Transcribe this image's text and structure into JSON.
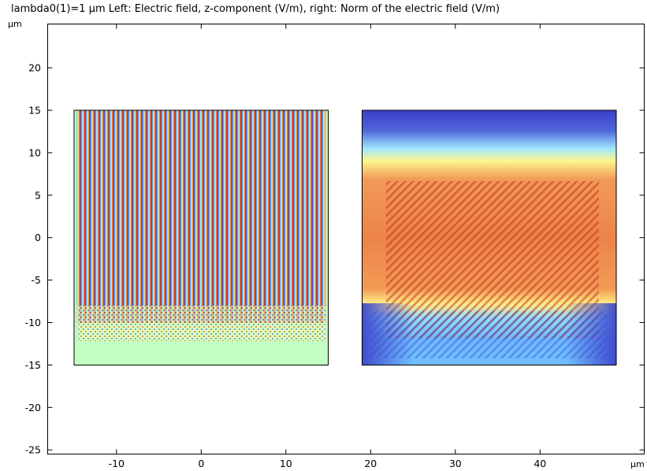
{
  "chart_data": {
    "type": "heatmap",
    "title": "lambda0(1)=1 µm   Left: Electric field, z-component (V/m), right: Norm of the electric field (V/m)",
    "xlabel": "µm",
    "ylabel": "µm",
    "xlim": [
      -18,
      50
    ],
    "ylim": [
      -25.5,
      25
    ],
    "xticks": [
      -10,
      0,
      10,
      20,
      30,
      40
    ],
    "yticks": [
      -25,
      -20,
      -15,
      -10,
      -5,
      0,
      5,
      10,
      15,
      20
    ],
    "xtick_labels": [
      "-10",
      "0",
      "10",
      "20",
      "30",
      "40"
    ],
    "ytick_labels": [
      "-25",
      "-20",
      "-15",
      "-10",
      "-5",
      "0",
      "5",
      "10",
      "15",
      "20"
    ],
    "grid": false,
    "colormap": "rainbow",
    "panels": [
      {
        "name": "Electric field, z-component (V/m)",
        "x_range": [
          -15,
          15
        ],
        "y_range": [
          -15,
          15
        ],
        "pattern": "vertical standing-wave fringes, strong for y > -10, fading toward bottom; background near zero (light green)"
      },
      {
        "name": "Norm of the electric field (V/m)",
        "x_range": [
          19,
          49
        ],
        "y_range": [
          -15,
          15
        ],
        "pattern": "high-norm band between y ≈ -7 and y ≈ 7 with diagonal interference fringes; low at top and bottom corners"
      }
    ],
    "colors": {
      "zero_field": "#c2ffc2",
      "low": "#3333cc",
      "mid_low": "#7fd0ff",
      "mid": "#fffc9c",
      "high": "#ef8a4c",
      "peak": "#c22f20"
    }
  }
}
